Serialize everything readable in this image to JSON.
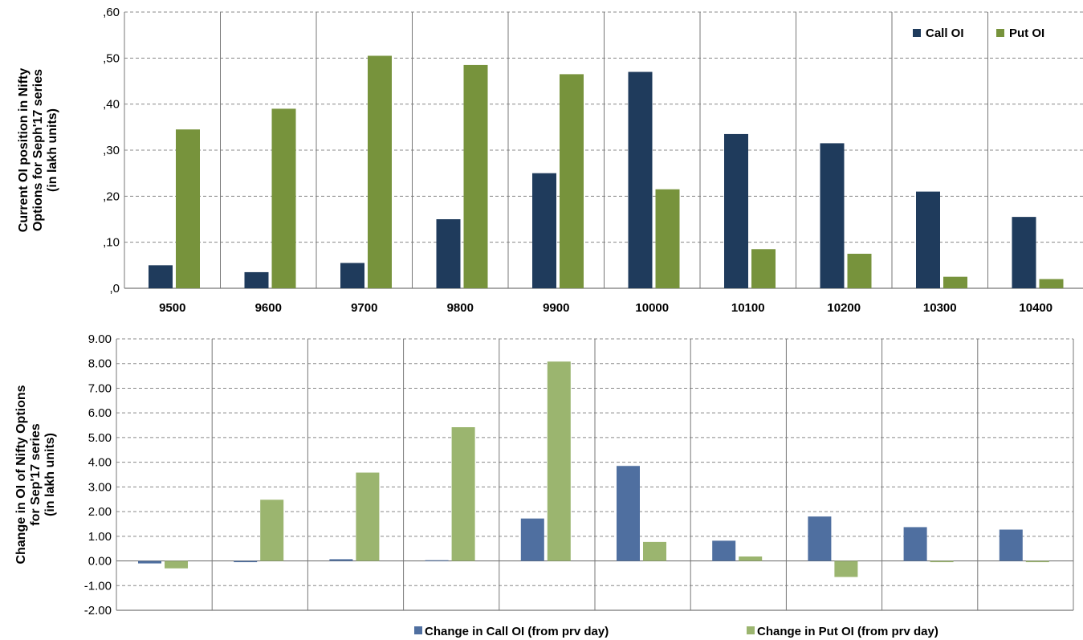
{
  "chart_data": [
    {
      "type": "bar",
      "ylabel_lines": [
        "Current OI position in Nifty",
        "Options for Seph'17 series",
        "(in lakh units)"
      ],
      "categories": [
        "9500",
        "9600",
        "9700",
        "9800",
        "9900",
        "10000",
        "10100",
        "10200",
        "10300",
        "10400"
      ],
      "series": [
        {
          "name": "Call OI",
          "color": "#1f3b5c",
          "values": [
            5,
            3.5,
            5.5,
            15,
            25,
            47,
            33.5,
            31.5,
            21,
            15.5
          ]
        },
        {
          "name": "Put OI",
          "color": "#77933c",
          "values": [
            34.5,
            39,
            50.5,
            48.5,
            46.5,
            21.5,
            8.5,
            7.5,
            2.5,
            2
          ]
        }
      ],
      "ylim": [
        0,
        60
      ],
      "yticks": [
        0,
        10,
        20,
        30,
        40,
        50,
        60
      ],
      "ytick_labels": [
        ",0",
        ",10",
        ",20",
        ",30",
        ",40",
        ",50",
        ",60"
      ],
      "legend_position": "top-right",
      "grid": true
    },
    {
      "type": "bar",
      "ylabel_lines": [
        "Change in OI of Nifty Options",
        "for Sep'17 series",
        "(in lakh units)"
      ],
      "categories": [
        "9500",
        "9600",
        "9700",
        "9800",
        "9900",
        "10000",
        "10100",
        "10200",
        "10300",
        "10400"
      ],
      "series": [
        {
          "name": "Change in Call OI (from prv day)",
          "color": "#4f6fa0",
          "values": [
            -0.1,
            -0.05,
            0.07,
            0.03,
            1.72,
            3.85,
            0.82,
            1.8,
            1.37,
            1.27
          ]
        },
        {
          "name": "Change in Put OI (from prv day)",
          "color": "#9bb56f",
          "values": [
            -0.3,
            2.48,
            3.58,
            5.42,
            8.08,
            0.77,
            0.18,
            -0.65,
            -0.05,
            -0.05
          ]
        }
      ],
      "ylim": [
        -2,
        9
      ],
      "yticks": [
        -2,
        -1,
        0,
        1,
        2,
        3,
        4,
        5,
        6,
        7,
        8,
        9
      ],
      "ytick_labels": [
        "-2.00",
        "-1.00",
        "0.00",
        "1.00",
        "2.00",
        "3.00",
        "4.00",
        "5.00",
        "6.00",
        "7.00",
        "8.00",
        "9.00"
      ],
      "legend_position": "bottom",
      "grid": true
    }
  ]
}
